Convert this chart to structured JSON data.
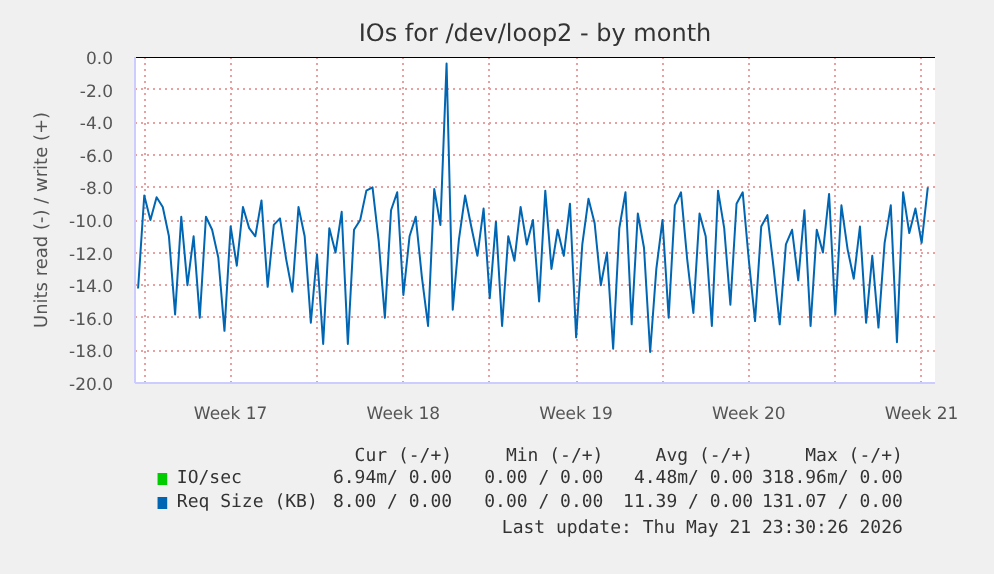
{
  "chart_data": {
    "type": "line",
    "title": "IOs for /dev/loop2 - by month",
    "ylabel": "Units read (-) / write (+)",
    "x": [
      "2026-04-19T18:00",
      "2026-04-20T00:00",
      "2026-04-20T06:00",
      "2026-04-20T12:00",
      "2026-04-20T18:00",
      "2026-04-21T00:00",
      "2026-04-21T06:00",
      "2026-04-21T12:00",
      "2026-04-21T18:00",
      "2026-04-22T00:00",
      "2026-04-22T06:00",
      "2026-04-22T12:00",
      "2026-04-22T18:00",
      "2026-04-23T00:00",
      "2026-04-23T06:00",
      "2026-04-23T12:00",
      "2026-04-23T18:00",
      "2026-04-24T00:00",
      "2026-04-24T06:00",
      "2026-04-24T12:00",
      "2026-04-24T18:00",
      "2026-04-25T00:00",
      "2026-04-25T06:00",
      "2026-04-25T12:00",
      "2026-04-25T18:00",
      "2026-04-26T00:00",
      "2026-04-26T06:00",
      "2026-04-26T12:00",
      "2026-04-26T18:00",
      "2026-04-27T00:00",
      "2026-04-27T06:00",
      "2026-04-27T12:00",
      "2026-04-27T18:00",
      "2026-04-28T00:00",
      "2026-04-28T06:00",
      "2026-04-28T12:00",
      "2026-04-28T18:00",
      "2026-04-29T00:00",
      "2026-04-29T06:00",
      "2026-04-29T12:00",
      "2026-04-29T18:00",
      "2026-04-30T00:00",
      "2026-04-30T06:00",
      "2026-04-30T12:00",
      "2026-04-30T18:00",
      "2026-05-01T00:00",
      "2026-05-01T06:00",
      "2026-05-01T12:00",
      "2026-05-01T18:00",
      "2026-05-02T00:00",
      "2026-05-02T06:00",
      "2026-05-02T12:00",
      "2026-05-02T18:00",
      "2026-05-03T00:00",
      "2026-05-03T06:00",
      "2026-05-03T12:00",
      "2026-05-03T18:00",
      "2026-05-04T00:00",
      "2026-05-04T06:00",
      "2026-05-04T12:00",
      "2026-05-04T18:00",
      "2026-05-05T00:00",
      "2026-05-05T06:00",
      "2026-05-05T12:00",
      "2026-05-05T18:00",
      "2026-05-06T00:00",
      "2026-05-06T06:00",
      "2026-05-06T12:00",
      "2026-05-06T18:00",
      "2026-05-07T00:00",
      "2026-05-07T06:00",
      "2026-05-07T12:00",
      "2026-05-07T18:00",
      "2026-05-08T00:00",
      "2026-05-08T06:00",
      "2026-05-08T12:00",
      "2026-05-08T18:00",
      "2026-05-09T00:00",
      "2026-05-09T06:00",
      "2026-05-09T12:00",
      "2026-05-09T18:00",
      "2026-05-10T00:00",
      "2026-05-10T06:00",
      "2026-05-10T12:00",
      "2026-05-10T18:00",
      "2026-05-11T00:00",
      "2026-05-11T06:00",
      "2026-05-11T12:00",
      "2026-05-11T18:00",
      "2026-05-12T00:00",
      "2026-05-12T06:00",
      "2026-05-12T12:00",
      "2026-05-12T18:00",
      "2026-05-13T00:00",
      "2026-05-13T06:00",
      "2026-05-13T12:00",
      "2026-05-13T18:00",
      "2026-05-14T00:00",
      "2026-05-14T06:00",
      "2026-05-14T12:00",
      "2026-05-14T18:00",
      "2026-05-15T00:00",
      "2026-05-15T06:00",
      "2026-05-15T12:00",
      "2026-05-15T18:00",
      "2026-05-16T00:00",
      "2026-05-16T06:00",
      "2026-05-16T12:00",
      "2026-05-16T18:00",
      "2026-05-17T00:00",
      "2026-05-17T06:00",
      "2026-05-17T12:00",
      "2026-05-17T18:00",
      "2026-05-18T00:00",
      "2026-05-18T06:00",
      "2026-05-18T12:00",
      "2026-05-18T18:00",
      "2026-05-19T00:00",
      "2026-05-19T06:00",
      "2026-05-19T12:00",
      "2026-05-19T18:00",
      "2026-05-20T00:00",
      "2026-05-20T06:00",
      "2026-05-20T12:00",
      "2026-05-20T18:00",
      "2026-05-21T00:00",
      "2026-05-21T06:00",
      "2026-05-21T12:00",
      "2026-05-21T18:00"
    ],
    "series": [
      {
        "name": "IO/sec",
        "color": "#00cc00",
        "values": [
          null,
          null,
          null,
          null,
          null,
          null,
          null,
          null,
          null,
          null,
          null,
          null,
          null,
          null,
          null,
          null,
          null,
          null,
          null,
          null,
          null,
          null,
          null,
          null,
          null,
          null,
          null,
          null,
          null,
          null,
          null,
          null,
          null,
          null,
          null,
          null,
          null,
          null,
          null,
          null,
          null,
          null,
          null,
          null,
          null,
          null,
          null,
          null,
          null,
          null,
          null,
          null,
          null,
          null,
          null,
          null,
          null,
          null,
          null,
          null,
          null,
          null,
          null,
          null,
          null,
          null,
          null,
          null,
          null,
          null,
          null,
          null,
          null,
          null,
          null,
          null,
          null,
          null,
          null,
          null,
          null,
          null,
          null,
          null,
          null,
          null,
          null,
          null,
          null,
          null,
          null,
          null,
          null,
          null,
          null,
          null,
          null,
          null,
          null,
          null,
          null,
          null,
          null,
          null,
          null,
          null,
          null,
          null,
          null,
          null,
          null,
          null,
          null,
          null,
          null,
          null,
          null,
          null,
          null,
          null,
          null,
          null,
          null,
          null,
          null,
          null,
          null,
          null,
          null
        ]
      },
      {
        "name": "Req Size (KB)",
        "color": "#0066b3",
        "values": [
          -14.2,
          -8.5,
          -10,
          -8.6,
          -9.2,
          -11,
          -15.8,
          -9.8,
          -14,
          -11,
          -16,
          -9.8,
          -10.6,
          -12.3,
          -16.8,
          -10.4,
          -12.8,
          -9.2,
          -10.5,
          -11,
          -8.8,
          -14.1,
          -10.3,
          -9.9,
          -12.4,
          -14.4,
          -9.2,
          -11,
          -16.3,
          -12.1,
          -17.6,
          -10.5,
          -12,
          -9.5,
          -17.6,
          -10.6,
          -10,
          -8.2,
          -8,
          -11.3,
          -16,
          -9.4,
          -8.3,
          -14.6,
          -11,
          -9.8,
          -13.5,
          -16.5,
          -8.1,
          -10.3,
          -0.4,
          -15.5,
          -11.2,
          -8.5,
          -10.4,
          -12.2,
          -9.3,
          -14.8,
          -10.1,
          -16.5,
          -11,
          -12.5,
          -9.2,
          -11.5,
          -10,
          -15,
          -8.2,
          -13,
          -10.6,
          -12.2,
          -9,
          -17.2,
          -11.5,
          -8.7,
          -10.2,
          -14,
          -12,
          -17.9,
          -10.5,
          -8.3,
          -16.4,
          -9.6,
          -11.7,
          -18.1,
          -13,
          -10,
          -16,
          -9.1,
          -8.3,
          -12.4,
          -15.7,
          -9.6,
          -11,
          -16.5,
          -8.2,
          -10.5,
          -15.2,
          -9,
          -8.3,
          -12.5,
          -16.2,
          -10.4,
          -9.7,
          -12.9,
          -16.4,
          -11.5,
          -10.6,
          -13.7,
          -9.4,
          -16.5,
          -10.6,
          -12,
          -8.4,
          -15.8,
          -9.1,
          -11.8,
          -13.6,
          -10.4,
          -16.3,
          -12.2,
          -16.6,
          -11.4,
          -9.1,
          -17.5,
          -8.3,
          -10.8,
          -9.3,
          -11.4,
          -8
        ]
      }
    ],
    "xlim": [
      "2026-04-19T15:00",
      "2026-05-22T01:00"
    ],
    "xticks": [
      {
        "value": "2026-04-20T00:00",
        "label": null
      },
      {
        "value": "2026-04-23T12:00",
        "label": "Week 17"
      },
      {
        "value": "2026-04-27T00:00",
        "label": null
      },
      {
        "value": "2026-04-30T12:00",
        "label": "Week 18"
      },
      {
        "value": "2026-05-04T00:00",
        "label": null
      },
      {
        "value": "2026-05-07T12:00",
        "label": "Week 19"
      },
      {
        "value": "2026-05-11T00:00",
        "label": null
      },
      {
        "value": "2026-05-14T12:00",
        "label": "Week 20"
      },
      {
        "value": "2026-05-18T00:00",
        "label": null
      },
      {
        "value": "2026-05-21T12:00",
        "label": "Week 21"
      }
    ],
    "ylim": [
      -20,
      0
    ],
    "yticks": [
      {
        "value": 0,
        "label": "0.0"
      },
      {
        "value": -2,
        "label": "-2.0"
      },
      {
        "value": -4,
        "label": "-4.0"
      },
      {
        "value": -6,
        "label": "-6.0"
      },
      {
        "value": -8,
        "label": "-8.0"
      },
      {
        "value": -10,
        "label": "-10.0"
      },
      {
        "value": -12,
        "label": "-12.0"
      },
      {
        "value": -14,
        "label": "-14.0"
      },
      {
        "value": -16,
        "label": "-16.0"
      },
      {
        "value": -18,
        "label": "-18.0"
      },
      {
        "value": -20,
        "label": "-20.0"
      }
    ],
    "ref_lines": [
      {
        "axis": "y",
        "value": 0,
        "color": "#000000"
      }
    ],
    "grid": true,
    "line_style": "solid",
    "legend": "bottom",
    "annotations": [
      "Cur (-/+)",
      "Min (-/+)",
      "Avg (-/+)",
      "Max (-/+)",
      "6.94m/ 0.00",
      "0.00 / 0.00",
      "4.48m/ 0.00",
      "318.96m/ 0.00",
      "8.00 / 0.00",
      "0.00 / 0.00",
      "11.39 / 0.00",
      "131.07 / 0.00",
      "Last update: Thu May 21 23:30:26 2026"
    ]
  }
}
